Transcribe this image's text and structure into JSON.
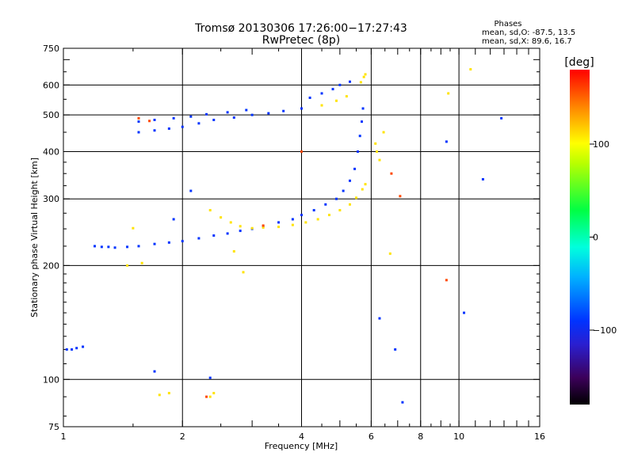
{
  "title": {
    "line1": "Tromsø 20130306 17:26:00−17:27:43",
    "line2": "RwPretec (8p)"
  },
  "stats": {
    "heading": "Phases",
    "o_line": "mean, sd,O: -87.5, 13.5",
    "x_line": "mean, sd,X:  89.6, 16.7"
  },
  "colorbar": {
    "unit_label": "[deg]",
    "ticks": [
      {
        "value": 100,
        "label": "100"
      },
      {
        "value": 0,
        "label": "0"
      },
      {
        "value": -100,
        "label": "−100"
      }
    ],
    "range": [
      -180,
      180
    ]
  },
  "chart_data": {
    "type": "scatter",
    "xlabel": "Frequency [MHz]",
    "ylabel": "Stationary phase Virtual Height [km]",
    "x_scale": "log",
    "y_scale": "log",
    "xlim": [
      1,
      16
    ],
    "ylim": [
      75,
      750
    ],
    "x_ticks": [
      {
        "value": 1,
        "label": "1"
      },
      {
        "value": 2,
        "label": "2"
      },
      {
        "value": 4,
        "label": "4"
      },
      {
        "value": 6,
        "label": "6"
      },
      {
        "value": 8,
        "label": "8"
      },
      {
        "value": 10,
        "label": "10"
      },
      {
        "value": 16,
        "label": "16"
      }
    ],
    "y_ticks": [
      {
        "value": 75,
        "label": "75"
      },
      {
        "value": 100,
        "label": "100"
      },
      {
        "value": 200,
        "label": "200"
      },
      {
        "value": 300,
        "label": "300"
      },
      {
        "value": 400,
        "label": "400"
      },
      {
        "value": 500,
        "label": "500"
      },
      {
        "value": 600,
        "label": "600"
      },
      {
        "value": 750,
        "label": "750"
      }
    ],
    "x_grid": [
      2,
      4,
      6,
      8,
      10
    ],
    "y_grid": [
      100,
      200,
      300,
      400,
      500,
      600
    ],
    "grid": true,
    "color_by": "phase [deg]",
    "series": [
      {
        "mode": "O",
        "phase": -90,
        "points": [
          [
            1.02,
            120
          ],
          [
            1.05,
            120
          ],
          [
            1.08,
            121
          ],
          [
            1.12,
            122
          ],
          [
            1.2,
            225
          ],
          [
            1.25,
            224
          ],
          [
            1.3,
            224
          ],
          [
            1.35,
            223
          ],
          [
            1.45,
            224
          ],
          [
            1.55,
            225
          ],
          [
            1.7,
            228
          ],
          [
            1.85,
            230
          ],
          [
            2.0,
            232
          ],
          [
            2.2,
            236
          ],
          [
            2.4,
            240
          ],
          [
            2.6,
            243
          ],
          [
            2.8,
            247
          ],
          [
            3.0,
            250
          ],
          [
            3.2,
            254
          ],
          [
            3.5,
            260
          ],
          [
            3.8,
            265
          ],
          [
            4.0,
            272
          ],
          [
            4.3,
            280
          ],
          [
            4.6,
            290
          ],
          [
            4.9,
            300
          ],
          [
            5.1,
            315
          ],
          [
            5.3,
            335
          ],
          [
            5.45,
            360
          ],
          [
            5.55,
            400
          ],
          [
            5.62,
            440
          ],
          [
            5.68,
            480
          ],
          [
            5.72,
            520
          ],
          [
            1.55,
            450
          ],
          [
            1.7,
            455
          ],
          [
            1.85,
            460
          ],
          [
            2.0,
            465
          ],
          [
            2.2,
            475
          ],
          [
            2.4,
            485
          ],
          [
            2.7,
            492
          ],
          [
            3.0,
            500
          ],
          [
            3.3,
            505
          ],
          [
            3.6,
            512
          ],
          [
            4.0,
            520
          ],
          [
            1.55,
            480
          ],
          [
            1.7,
            485
          ],
          [
            1.9,
            490
          ],
          [
            2.1,
            495
          ],
          [
            2.3,
            502
          ],
          [
            2.6,
            508
          ],
          [
            2.9,
            515
          ],
          [
            4.2,
            555
          ],
          [
            4.5,
            570
          ],
          [
            4.8,
            585
          ],
          [
            5.0,
            600
          ],
          [
            5.3,
            612
          ],
          [
            1.7,
            105
          ],
          [
            2.35,
            101
          ],
          [
            2.1,
            315
          ],
          [
            1.9,
            265
          ],
          [
            11.5,
            338
          ],
          [
            10.3,
            150
          ],
          [
            9.3,
            425
          ],
          [
            12.8,
            490
          ],
          [
            6.9,
            120
          ],
          [
            6.3,
            145
          ],
          [
            7.2,
            87
          ]
        ]
      },
      {
        "mode": "X",
        "phase": 110,
        "points": [
          [
            2.35,
            280
          ],
          [
            2.5,
            268
          ],
          [
            2.65,
            260
          ],
          [
            2.8,
            254
          ],
          [
            3.0,
            251
          ],
          [
            3.2,
            252
          ],
          [
            3.5,
            253
          ],
          [
            3.8,
            256
          ],
          [
            4.1,
            260
          ],
          [
            4.4,
            265
          ],
          [
            4.7,
            272
          ],
          [
            5.0,
            280
          ],
          [
            5.3,
            290
          ],
          [
            5.5,
            302
          ],
          [
            5.7,
            318
          ],
          [
            5.8,
            328
          ],
          [
            5.65,
            610
          ],
          [
            5.75,
            630
          ],
          [
            5.8,
            640
          ],
          [
            6.15,
            420
          ],
          [
            6.2,
            400
          ],
          [
            6.3,
            380
          ],
          [
            6.45,
            450
          ],
          [
            4.5,
            530
          ],
          [
            4.9,
            545
          ],
          [
            5.2,
            560
          ],
          [
            1.75,
            91
          ],
          [
            1.85,
            92
          ],
          [
            2.35,
            90
          ],
          [
            2.4,
            92
          ],
          [
            1.45,
            200
          ],
          [
            1.58,
            203
          ],
          [
            2.85,
            192
          ],
          [
            6.7,
            215
          ],
          [
            1.5,
            251
          ],
          [
            2.7,
            218
          ],
          [
            9.4,
            570
          ],
          [
            10.7,
            660
          ]
        ]
      },
      {
        "mode": "other",
        "phase": 160,
        "points": [
          [
            1.55,
            490
          ],
          [
            1.65,
            482
          ],
          [
            7.1,
            305
          ],
          [
            9.3,
            183
          ],
          [
            6.75,
            350
          ],
          [
            4.0,
            400
          ],
          [
            3.2,
            255
          ],
          [
            2.3,
            90
          ]
        ]
      }
    ]
  }
}
